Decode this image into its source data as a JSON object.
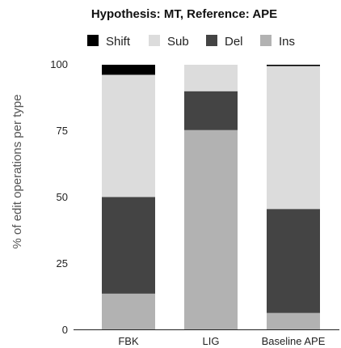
{
  "chart_data": {
    "type": "bar",
    "stacked": true,
    "title": "Hypothesis: MT, Reference: APE",
    "xlabel": "",
    "ylabel": "% of edit operations per type",
    "ylim": [
      0,
      100
    ],
    "yticks": [
      "0",
      "25",
      "50",
      "75",
      "100"
    ],
    "categories": [
      "FBK",
      "LIG",
      "Baseline APE"
    ],
    "legend_position": "top",
    "grid": false,
    "legend": [
      {
        "name": "Shift",
        "color": "#000000"
      },
      {
        "name": "Sub",
        "color": "#dcdcdc"
      },
      {
        "name": "Del",
        "color": "#444444"
      },
      {
        "name": "Ins",
        "color": "#b2b2b2"
      }
    ],
    "series": [
      {
        "name": "Ins",
        "color": "#b2b2b2",
        "values": [
          13.5,
          75.3,
          6.2
        ]
      },
      {
        "name": "Del",
        "color": "#444444",
        "values": [
          36.5,
          14.7,
          39.3
        ]
      },
      {
        "name": "Sub",
        "color": "#dcdcdc",
        "values": [
          46.2,
          10.0,
          54.0
        ]
      },
      {
        "name": "Shift",
        "color": "#000000",
        "values": [
          3.8,
          0.0,
          0.5
        ]
      }
    ]
  }
}
